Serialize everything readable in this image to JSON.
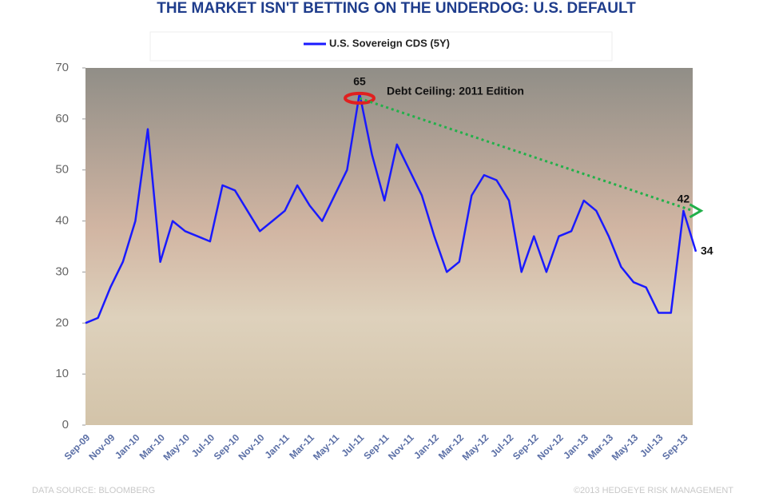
{
  "chart_data": {
    "type": "line",
    "title": "THE MARKET ISN'T BETTING ON THE UNDERDOG: U.S. DEFAULT",
    "categories": [
      "Sep-09",
      null,
      "Nov-09",
      null,
      "Jan-10",
      null,
      "Mar-10",
      null,
      "May-10",
      null,
      "Jul-10",
      null,
      "Sep-10",
      null,
      "Nov-10",
      null,
      "Jan-11",
      null,
      "Mar-11",
      null,
      "May-11",
      null,
      "Jul-11",
      null,
      "Sep-11",
      null,
      "Nov-11",
      null,
      "Jan-12",
      null,
      "Mar-12",
      null,
      "May-12",
      null,
      "Jul-12",
      null,
      "Sep-12",
      null,
      "Nov-12",
      null,
      "Jan-13",
      null,
      "Mar-13",
      null,
      "May-13",
      null,
      "Jul-13",
      null,
      "Sep-13",
      null
    ],
    "series": [
      {
        "name": "U.S. Sovereign CDS (5Y)",
        "color": "#1a1aff",
        "values": [
          20,
          21,
          27,
          32,
          40,
          58,
          32,
          40,
          38,
          37,
          36,
          47,
          46,
          42,
          38,
          40,
          42,
          47,
          43,
          40,
          45,
          50,
          65,
          53,
          44,
          55,
          50,
          45,
          37,
          30,
          32,
          45,
          49,
          48,
          44,
          30,
          37,
          30,
          37,
          38,
          44,
          42,
          37,
          31,
          28,
          27,
          22,
          22,
          42,
          34
        ]
      }
    ],
    "labeled_points": [
      22,
      48,
      49
    ],
    "annotation": {
      "text": "Debt Ceiling: 2011 Edition",
      "index": 22
    },
    "trend": {
      "from": 22,
      "to": 48,
      "color": "#22b04a"
    },
    "ylim": [
      0,
      70
    ],
    "yticks": [
      0,
      10,
      20,
      30,
      40,
      50,
      60,
      70
    ],
    "source": "DATA SOURCE: BLOOMBERG",
    "credit": "©2013 HEDGEYE RISK MANAGEMENT"
  }
}
